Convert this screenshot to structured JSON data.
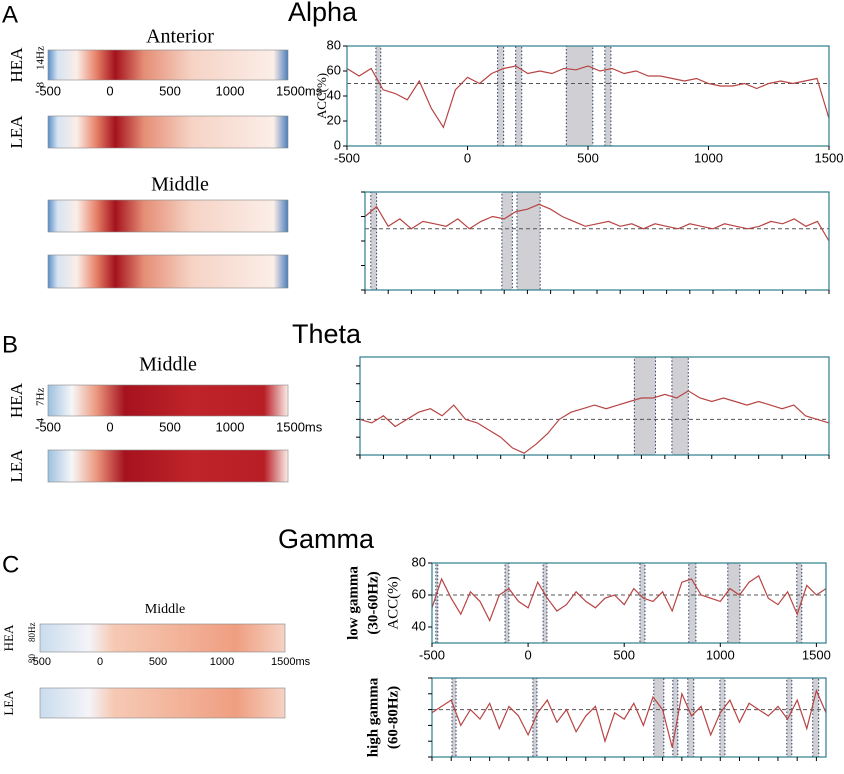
{
  "figure": {
    "panels": [
      {
        "letter": "A",
        "title": "Alpha"
      },
      {
        "letter": "B",
        "title": "Theta"
      },
      {
        "letter": "C",
        "title": "Gamma"
      }
    ],
    "heatmaps": [
      {
        "title": "Anterior",
        "rows": [
          "HEA",
          "LEA"
        ],
        "freq_labels": [
          "14Hz",
          "8"
        ],
        "time_labels": [
          "-500",
          "0",
          "500",
          "1000",
          "1500ms"
        ]
      },
      {
        "title": "Middle"
      },
      {
        "title": "Middle",
        "rows": [
          "HEA",
          "LEA"
        ],
        "freq_labels": [
          "7Hz",
          "4"
        ],
        "time_labels": [
          "-500",
          "0",
          "500",
          "1000",
          "1500ms"
        ]
      },
      {
        "title": "Middle",
        "rows": [
          "HEA",
          "LEA"
        ],
        "freq_labels": [
          "80Hz",
          "30"
        ],
        "time_labels": [
          "-500",
          "0",
          "500",
          "1000",
          "1500ms"
        ]
      }
    ]
  },
  "chart_data": [
    {
      "type": "line",
      "color": "#b84444",
      "ylabel": [
        "ACC(%)"
      ],
      "tick_labels": true,
      "x": [
        -500,
        -450,
        -400,
        -350,
        -300,
        -250,
        -200,
        -150,
        -100,
        -50,
        0,
        50,
        100,
        150,
        200,
        250,
        300,
        350,
        400,
        450,
        500,
        550,
        600,
        650,
        700,
        750,
        800,
        850,
        900,
        950,
        1000,
        1050,
        1100,
        1150,
        1200,
        1250,
        1300,
        1350,
        1400,
        1450,
        1500
      ],
      "values": [
        62,
        56,
        62,
        45,
        42,
        37,
        52,
        30,
        15,
        45,
        55,
        50,
        58,
        62,
        64,
        58,
        60,
        58,
        62,
        61,
        64,
        60,
        62,
        58,
        60,
        56,
        56,
        54,
        52,
        54,
        50,
        48,
        48,
        50,
        46,
        50,
        52,
        50,
        52,
        54,
        22
      ],
      "xlim": [
        -500,
        1500
      ],
      "ylim": [
        0,
        80
      ],
      "xticks": [
        -500,
        0,
        500,
        1000,
        1500
      ],
      "yticks": [
        0,
        20,
        40,
        60,
        80
      ],
      "chance": 50,
      "shaded": [
        [
          -380,
          -360
        ],
        [
          125,
          150
        ],
        [
          200,
          225
        ],
        [
          410,
          520
        ],
        [
          570,
          595
        ]
      ]
    },
    {
      "type": "line",
      "color": "#b84444",
      "tick_labels": false,
      "x": [
        -500,
        -450,
        -400,
        -350,
        -300,
        -250,
        -200,
        -150,
        -100,
        -50,
        0,
        50,
        100,
        150,
        200,
        250,
        300,
        350,
        400,
        450,
        500,
        550,
        600,
        650,
        700,
        750,
        800,
        850,
        900,
        950,
        1000,
        1050,
        1100,
        1150,
        1200,
        1250,
        1300,
        1350,
        1400,
        1450,
        1500
      ],
      "values": [
        60,
        68,
        52,
        58,
        50,
        56,
        54,
        52,
        58,
        50,
        56,
        60,
        58,
        64,
        66,
        70,
        66,
        60,
        56,
        52,
        54,
        56,
        52,
        54,
        50,
        54,
        52,
        50,
        54,
        52,
        50,
        54,
        52,
        50,
        52,
        56,
        54,
        58,
        52,
        56,
        40
      ],
      "xlim": [
        -500,
        1500
      ],
      "ylim": [
        0,
        80
      ],
      "xticks": [
        -500,
        -400,
        -300,
        -200,
        -100,
        0,
        100,
        200,
        300,
        400,
        500,
        600,
        700,
        800,
        900,
        1000,
        1100,
        1200,
        1300,
        1400,
        1500
      ],
      "yticks": [
        0,
        20,
        40,
        60,
        80
      ],
      "chance": 50,
      "shaded": [
        [
          -475,
          -450
        ],
        [
          90,
          135
        ],
        [
          155,
          255
        ]
      ]
    },
    {
      "type": "line",
      "color": "#b84444",
      "tick_labels": false,
      "x": [
        -500,
        -450,
        -400,
        -350,
        -300,
        -250,
        -200,
        -150,
        -100,
        -50,
        0,
        50,
        100,
        150,
        200,
        250,
        300,
        350,
        400,
        450,
        500,
        550,
        600,
        650,
        700,
        750,
        800,
        850,
        900,
        950,
        1000,
        1050,
        1100,
        1150,
        1200,
        1250,
        1300,
        1350,
        1400,
        1450,
        1500
      ],
      "values": [
        50,
        48,
        52,
        46,
        50,
        54,
        56,
        52,
        58,
        50,
        48,
        44,
        40,
        34,
        31,
        36,
        42,
        50,
        54,
        56,
        58,
        56,
        58,
        60,
        62,
        62,
        64,
        62,
        66,
        62,
        60,
        62,
        60,
        58,
        60,
        58,
        56,
        58,
        52,
        50,
        48
      ],
      "xlim": [
        -500,
        1500
      ],
      "ylim": [
        30,
        85
      ],
      "xticks": [
        -500,
        -400,
        -300,
        -200,
        -100,
        0,
        100,
        200,
        300,
        400,
        500,
        600,
        700,
        800,
        900,
        1000,
        1100,
        1200,
        1300,
        1400,
        1500
      ],
      "yticks": [
        30,
        40,
        50,
        60,
        70,
        80
      ],
      "chance": 50,
      "shaded": [
        [
          670,
          760
        ],
        [
          830,
          900
        ]
      ]
    },
    {
      "type": "line",
      "color": "#b84444",
      "ylabel": [
        "low gamma",
        "(30-60Hz)",
        "ACC(%)"
      ],
      "tick_labels": true,
      "x": [
        -500,
        -450,
        -400,
        -350,
        -300,
        -250,
        -200,
        -150,
        -100,
        -50,
        0,
        50,
        100,
        150,
        200,
        250,
        300,
        350,
        400,
        450,
        500,
        550,
        600,
        650,
        700,
        750,
        800,
        850,
        900,
        950,
        1000,
        1050,
        1100,
        1150,
        1200,
        1250,
        1300,
        1350,
        1400,
        1450,
        1500,
        1550
      ],
      "values": [
        52,
        70,
        58,
        48,
        62,
        56,
        44,
        60,
        64,
        56,
        52,
        68,
        58,
        50,
        54,
        62,
        56,
        52,
        58,
        60,
        54,
        64,
        58,
        56,
        62,
        50,
        68,
        70,
        60,
        58,
        56,
        64,
        60,
        68,
        72,
        58,
        54,
        62,
        48,
        66,
        60,
        64
      ],
      "xlim": [
        -500,
        1550
      ],
      "ylim": [
        30,
        80
      ],
      "xticks": [
        -500,
        0,
        500,
        1000,
        1500
      ],
      "yticks": [
        40,
        60,
        80
      ],
      "chance": 60,
      "shaded": [
        [
          -480,
          -470
        ],
        [
          -120,
          -100
        ],
        [
          78,
          98
        ],
        [
          582,
          608
        ],
        [
          836,
          873
        ],
        [
          1039,
          1102
        ],
        [
          1398,
          1424
        ]
      ]
    },
    {
      "type": "line",
      "color": "#b84444",
      "ylabel": [
        "high gamma",
        "(60-80Hz)"
      ],
      "tick_labels": false,
      "x": [
        -500,
        -450,
        -400,
        -350,
        -300,
        -250,
        -200,
        -150,
        -100,
        -50,
        0,
        50,
        100,
        150,
        200,
        250,
        300,
        350,
        400,
        450,
        500,
        550,
        600,
        650,
        700,
        750,
        800,
        850,
        900,
        950,
        1000,
        1050,
        1100,
        1150,
        1200,
        1250,
        1300,
        1350,
        1400,
        1450,
        1500,
        1550
      ],
      "values": [
        58,
        62,
        66,
        50,
        60,
        54,
        64,
        48,
        62,
        56,
        44,
        58,
        66,
        52,
        60,
        46,
        56,
        62,
        40,
        58,
        54,
        64,
        50,
        68,
        60,
        36,
        70,
        56,
        62,
        44,
        58,
        66,
        52,
        64,
        60,
        56,
        62,
        54,
        66,
        48,
        72,
        58
      ],
      "xlim": [
        -500,
        1550
      ],
      "ylim": [
        30,
        80
      ],
      "xticks": [
        -500,
        -400,
        -300,
        -200,
        -100,
        0,
        100,
        200,
        300,
        400,
        500,
        600,
        700,
        800,
        900,
        1000,
        1100,
        1200,
        1300,
        1400,
        1500
      ],
      "yticks": [
        30,
        40,
        50,
        60,
        70,
        80
      ],
      "chance": 60,
      "shaded": [
        [
          -396,
          -375
        ],
        [
          25,
          46
        ],
        [
          654,
          706
        ],
        [
          753,
          779
        ],
        [
          831,
          862
        ],
        [
          998,
          1024
        ],
        [
          1346,
          1372
        ],
        [
          1481,
          1512
        ]
      ]
    }
  ]
}
